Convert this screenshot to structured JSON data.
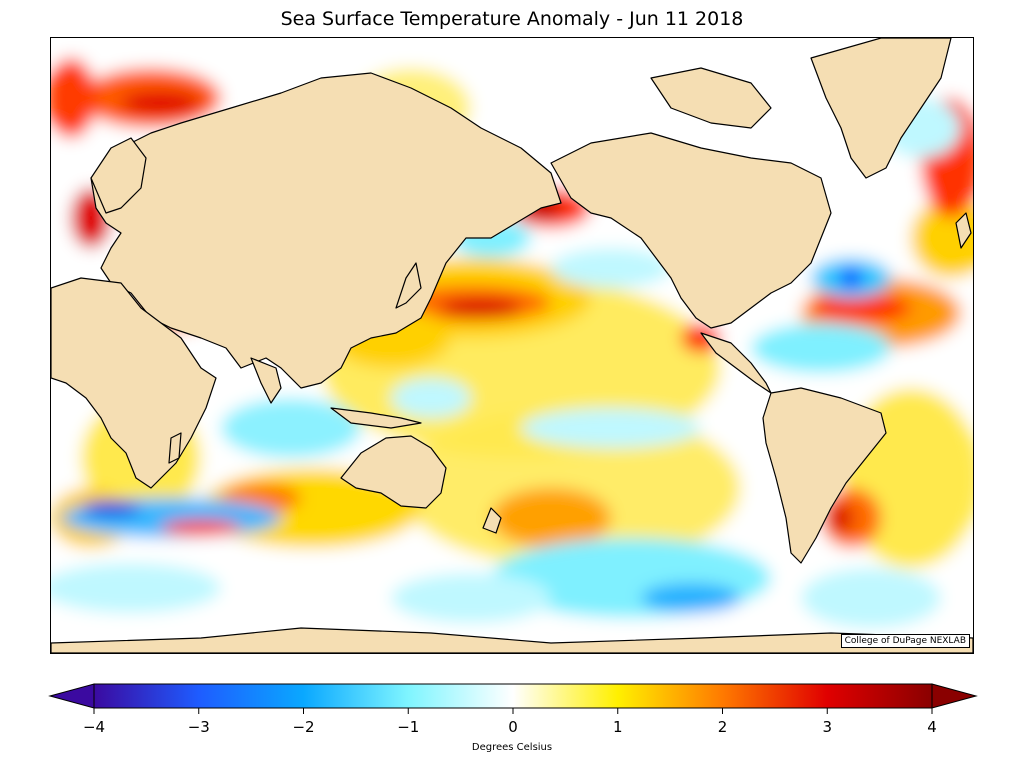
{
  "title": "Sea Surface Temperature Anomaly - Jun 11 2018",
  "credit": "College of DuPage NEXLAB",
  "colorbar": {
    "label": "Degrees Celsius",
    "ticks": [
      "−4",
      "−3",
      "−2",
      "−1",
      "0",
      "1",
      "2",
      "3",
      "4"
    ],
    "range": [
      -4,
      4
    ],
    "stops": [
      {
        "v": -4,
        "c": "#3b0aa0"
      },
      {
        "v": -3,
        "c": "#1e5cff"
      },
      {
        "v": -2,
        "c": "#0aa8ff"
      },
      {
        "v": -1,
        "c": "#7ff5ff"
      },
      {
        "v": 0,
        "c": "#ffffff"
      },
      {
        "v": 1,
        "c": "#fff000"
      },
      {
        "v": 2,
        "c": "#ff7a00"
      },
      {
        "v": 3,
        "c": "#e00000"
      },
      {
        "v": 4,
        "c": "#8a0000"
      }
    ]
  },
  "colors": {
    "land": "#f5deb3",
    "coast": "#000000",
    "ocean_neutral": "#ffffff"
  }
}
